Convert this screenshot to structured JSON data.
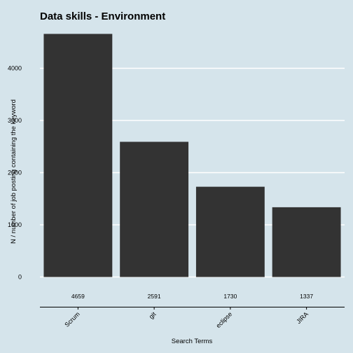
{
  "chart_data": {
    "type": "bar",
    "title": "Data skills - Environment",
    "xlabel": "Search Terms",
    "ylabel": "N / number of job posting containing the keyword",
    "categories": [
      "Scrum",
      "git",
      "eclipse",
      "JIRA"
    ],
    "values": [
      4659,
      2591,
      1730,
      1337
    ],
    "data_labels": [
      "4659",
      "2591",
      "1730",
      "1337"
    ],
    "yticks": [
      0,
      1000,
      2000,
      3000,
      4000
    ],
    "ylim": [
      0,
      4850
    ],
    "grid": "horizontal",
    "legend": "none",
    "colors": {
      "background": "#d5e4eb",
      "bar": "#333333",
      "grid": "#ffffff",
      "axis": "#000000"
    }
  }
}
